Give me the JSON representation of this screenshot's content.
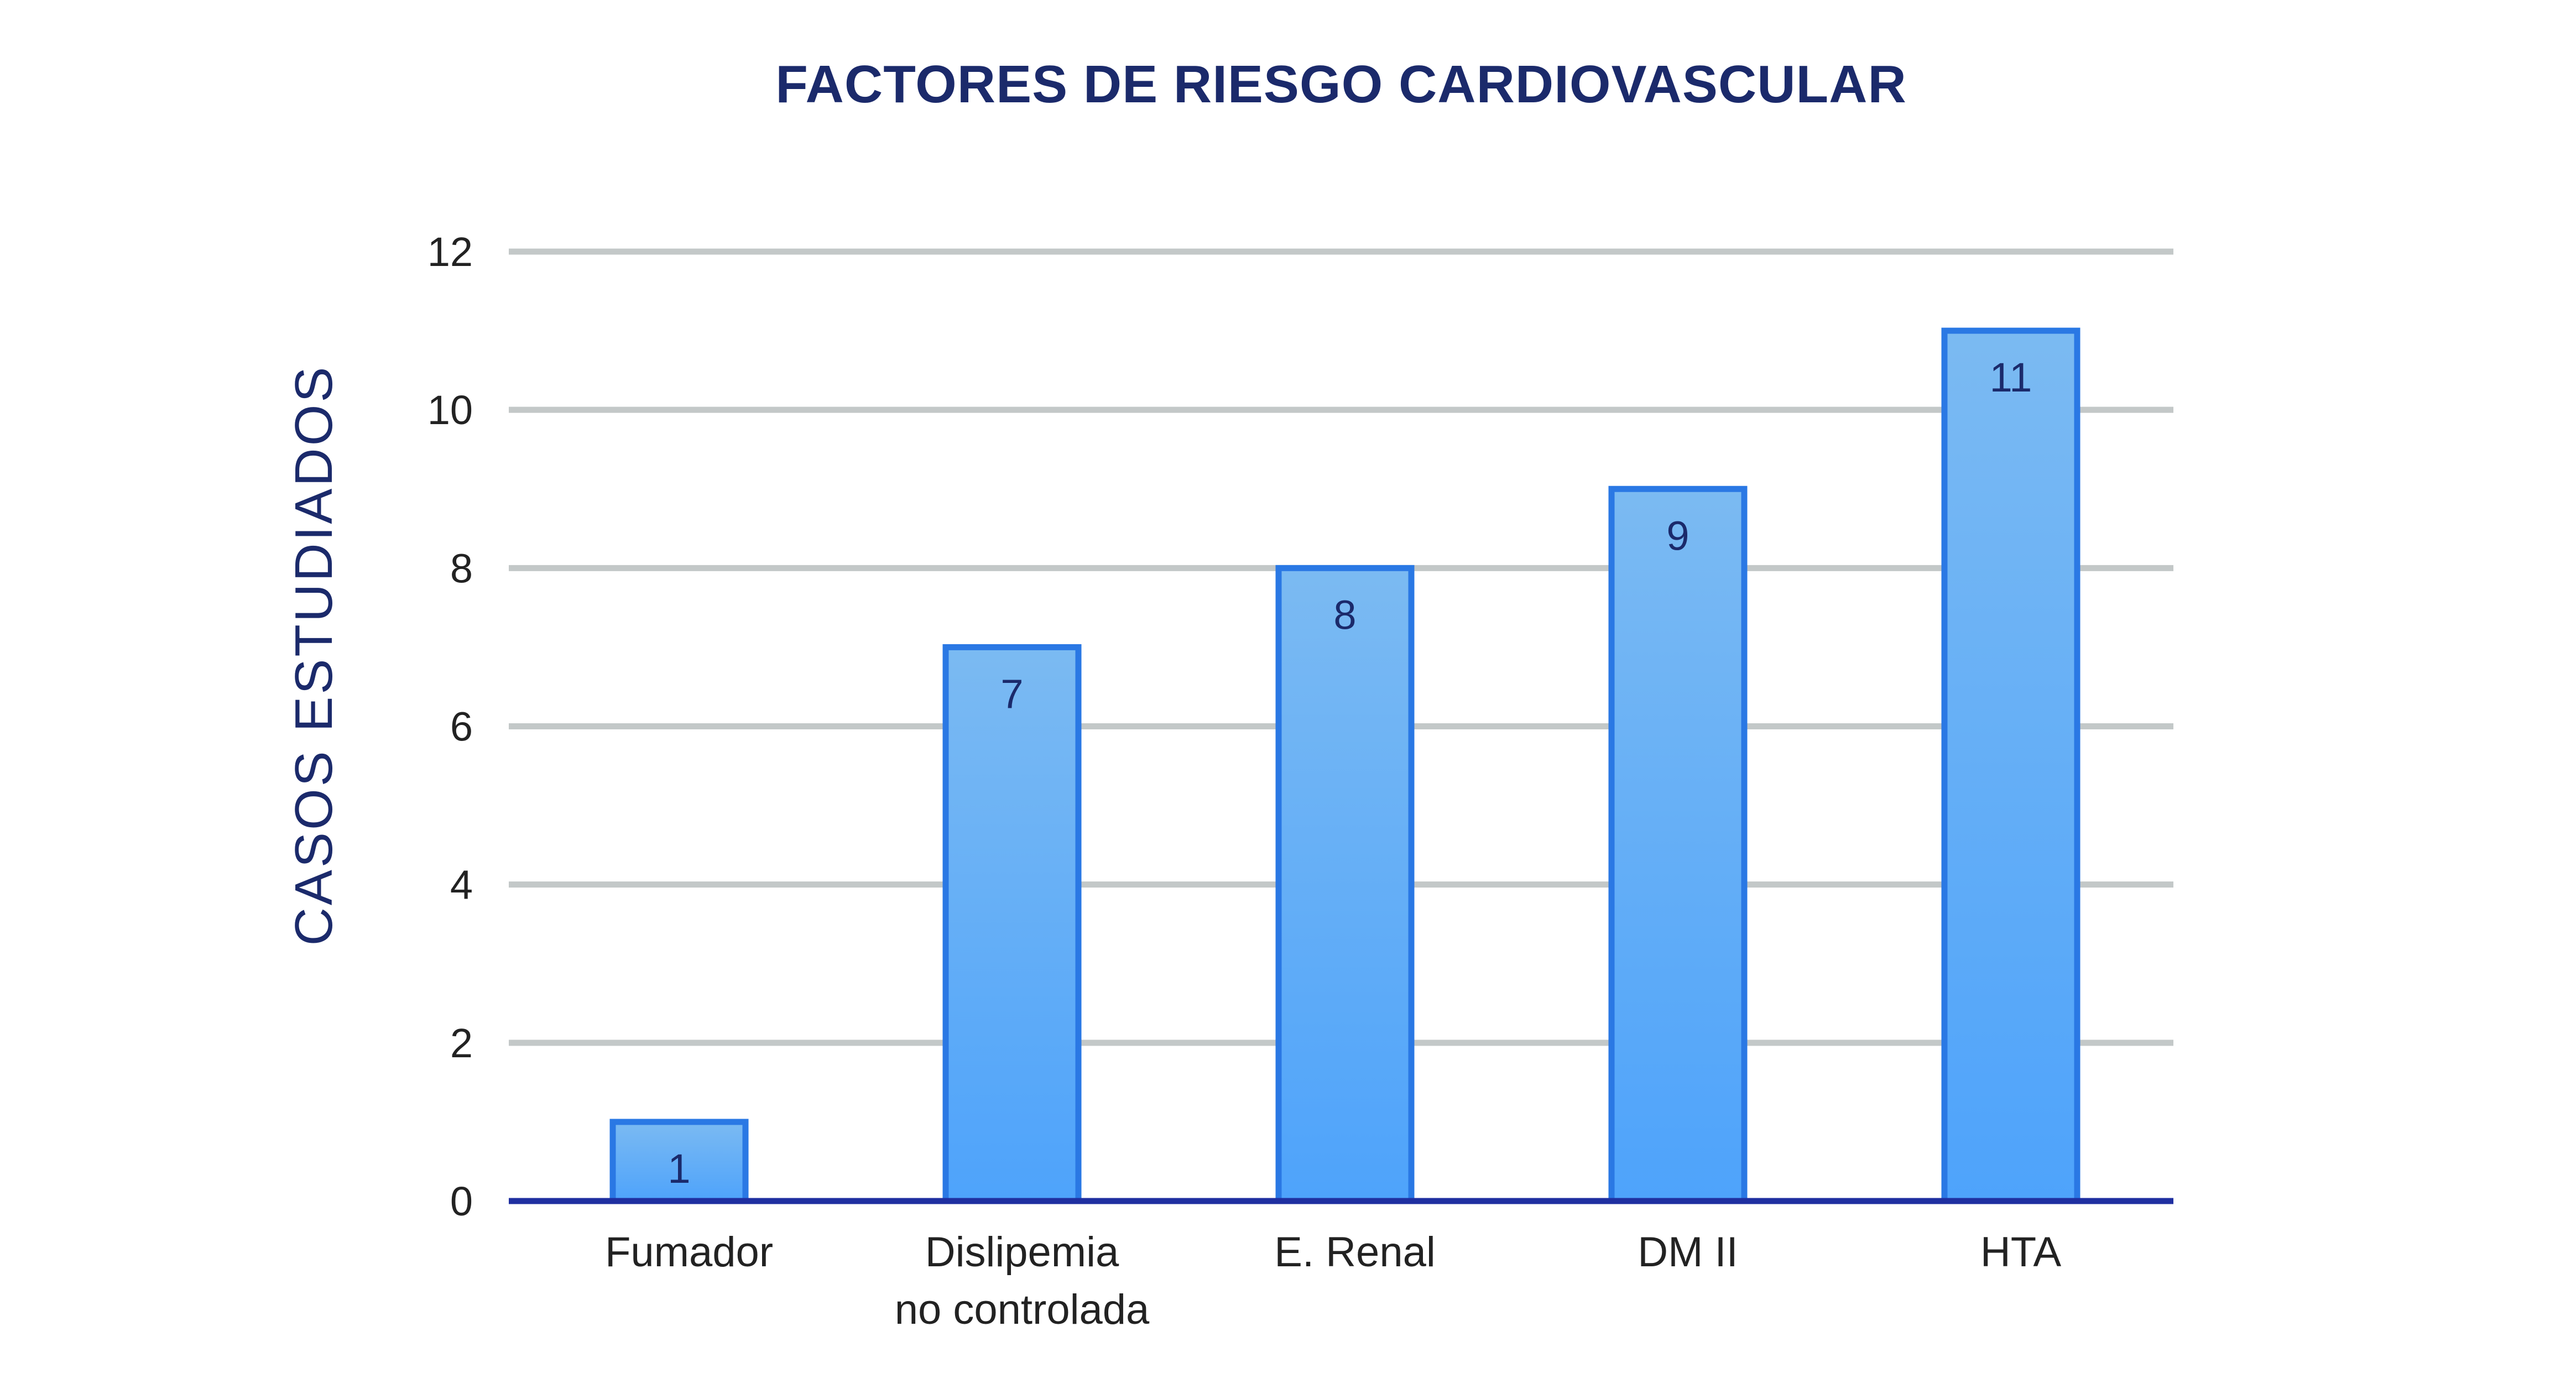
{
  "chart_data": {
    "type": "bar",
    "title": "FACTORES DE RIESGO CARDIOVASCULAR",
    "xlabel": "",
    "ylabel": "CASOS  ESTUDIADOS",
    "categories": [
      [
        "Fumador"
      ],
      [
        "Dislipemia",
        "no controlada"
      ],
      [
        "E. Renal"
      ],
      [
        "DM II"
      ],
      [
        "HTA"
      ]
    ],
    "values": [
      1,
      7,
      8,
      9,
      11
    ],
    "data_labels": [
      "1",
      "7",
      "8",
      "9",
      "11"
    ],
    "ylim": [
      0,
      12
    ],
    "yticks": [
      0,
      2,
      4,
      6,
      8,
      10,
      12
    ],
    "ytick_labels": [
      "0",
      "2",
      "4",
      "6",
      "8",
      "10",
      "12"
    ],
    "grid": true,
    "legend": "none",
    "colors": {
      "bar_top": "#7bbaf2",
      "bar_bottom": "#4ea3fb",
      "bar_border": "#2a78e4",
      "grid": "#c3c8c8",
      "baseline": "#1f2fa0",
      "title": "#1b2a6b",
      "data_label": "#1b2a6b",
      "tick_label": "#222222"
    }
  }
}
